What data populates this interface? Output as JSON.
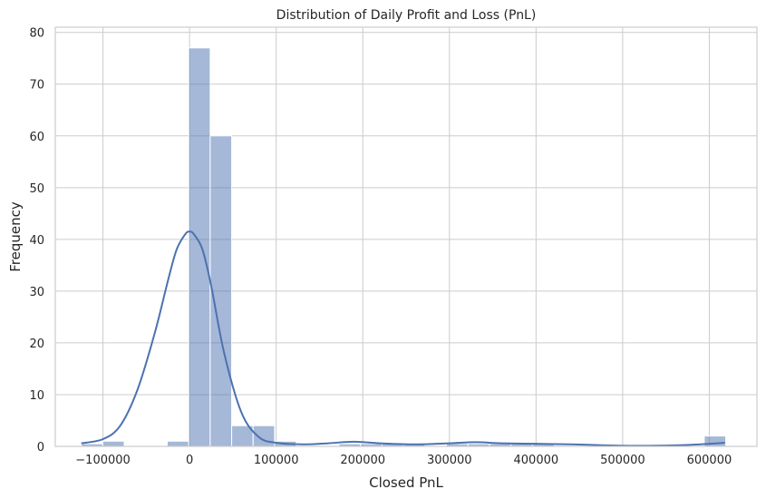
{
  "chart_data": {
    "type": "bar",
    "title": "Distribution of Daily Profit and Loss (PnL)",
    "xlabel": "Closed PnL",
    "ylabel": "Frequency",
    "xlim": [
      -155000,
      655000
    ],
    "ylim": [
      0,
      81
    ],
    "grid": true,
    "xticks": [
      -100000,
      0,
      100000,
      200000,
      300000,
      400000,
      500000,
      600000
    ],
    "xtick_labels": [
      "−100000",
      "0",
      "100000",
      "200000",
      "300000",
      "400000",
      "500000",
      "600000"
    ],
    "yticks": [
      0,
      10,
      20,
      30,
      40,
      50,
      60,
      70,
      80
    ],
    "ytick_labels": [
      "0",
      "10",
      "20",
      "30",
      "40",
      "50",
      "60",
      "70",
      "80"
    ],
    "bin_width": 24800,
    "bins": [
      {
        "x0": -125000,
        "count": 0.5
      },
      {
        "x0": -100200,
        "count": 1
      },
      {
        "x0": -75400,
        "count": 0
      },
      {
        "x0": -50600,
        "count": 0
      },
      {
        "x0": -25800,
        "count": 1
      },
      {
        "x0": -1000,
        "count": 77
      },
      {
        "x0": 23800,
        "count": 60
      },
      {
        "x0": 48600,
        "count": 4
      },
      {
        "x0": 73400,
        "count": 4
      },
      {
        "x0": 98200,
        "count": 1
      },
      {
        "x0": 123000,
        "count": 0
      },
      {
        "x0": 147800,
        "count": 0
      },
      {
        "x0": 172600,
        "count": 0.5
      },
      {
        "x0": 197400,
        "count": 0.5
      },
      {
        "x0": 222200,
        "count": 0.5
      },
      {
        "x0": 247000,
        "count": 0.5
      },
      {
        "x0": 271800,
        "count": 0
      },
      {
        "x0": 296600,
        "count": 0.5
      },
      {
        "x0": 321400,
        "count": 0.5
      },
      {
        "x0": 346200,
        "count": 0.5
      },
      {
        "x0": 371000,
        "count": 0.5
      },
      {
        "x0": 395800,
        "count": 0.5
      },
      {
        "x0": 420600,
        "count": 0
      },
      {
        "x0": 445400,
        "count": 0
      },
      {
        "x0": 470200,
        "count": 0
      },
      {
        "x0": 495000,
        "count": 0
      },
      {
        "x0": 519800,
        "count": 0
      },
      {
        "x0": 544600,
        "count": 0
      },
      {
        "x0": 569400,
        "count": 0
      },
      {
        "x0": 594200,
        "count": 2
      }
    ],
    "kde": {
      "x": [
        -125000,
        -100000,
        -80000,
        -60000,
        -40000,
        -25000,
        -15000,
        -5000,
        0,
        5000,
        15000,
        25000,
        40000,
        60000,
        80000,
        100000,
        130000,
        160000,
        190000,
        220000,
        260000,
        300000,
        330000,
        360000,
        400000,
        440000,
        480000,
        520000,
        560000,
        590000,
        618000
      ],
      "y": [
        0.6,
        1.4,
        4,
        11,
        22,
        32,
        38,
        41,
        41.5,
        41,
        38,
        31,
        18,
        6.5,
        1.8,
        0.7,
        0.4,
        0.6,
        0.9,
        0.6,
        0.4,
        0.6,
        0.8,
        0.6,
        0.5,
        0.4,
        0.2,
        0.1,
        0.2,
        0.4,
        0.7
      ]
    }
  }
}
